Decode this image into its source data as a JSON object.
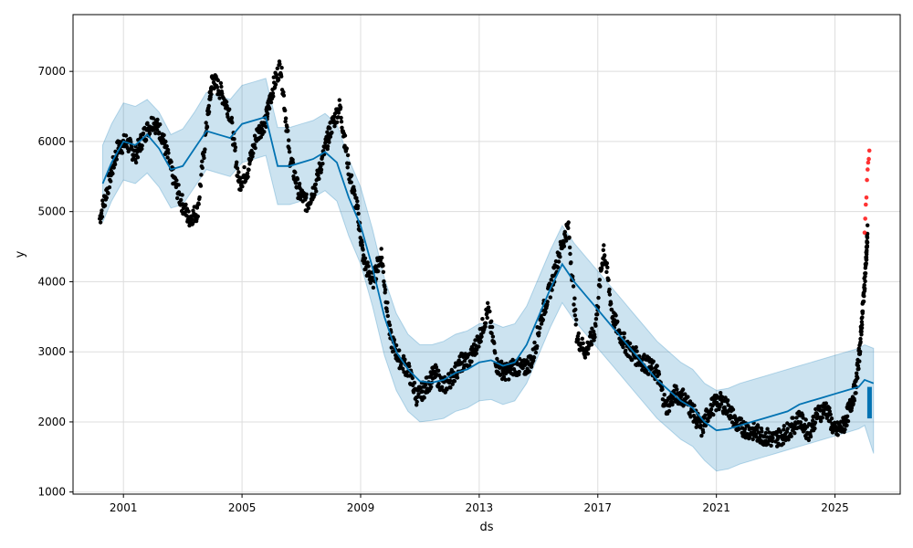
{
  "chart_data": {
    "type": "line",
    "xlabel": "ds",
    "ylabel": "y",
    "xlim": [
      1999.3,
      2027.2
    ],
    "ylim": [
      970,
      7810
    ],
    "grid": true,
    "x_ticks": [
      {
        "value": 2001,
        "label": "2001"
      },
      {
        "value": 2005,
        "label": "2005"
      },
      {
        "value": 2009,
        "label": "2009"
      },
      {
        "value": 2013,
        "label": "2013"
      },
      {
        "value": 2017,
        "label": "2017"
      },
      {
        "value": 2021,
        "label": "2021"
      },
      {
        "value": 2025,
        "label": "2025"
      }
    ],
    "y_ticks": [
      {
        "value": 1000,
        "label": "1000"
      },
      {
        "value": 2000,
        "label": "2000"
      },
      {
        "value": 3000,
        "label": "3000"
      },
      {
        "value": 4000,
        "label": "4000"
      },
      {
        "value": 5000,
        "label": "5000"
      },
      {
        "value": 6000,
        "label": "6000"
      },
      {
        "value": 7000,
        "label": "7000"
      }
    ],
    "colors": {
      "forecast": "#0072B2",
      "interval": "#0072B2",
      "observed": "#000000",
      "anomaly": "#ff0000",
      "grid": "#dddddd"
    },
    "series": [
      {
        "role": "forecast",
        "x": [
          2000.3,
          2000.6,
          2001.0,
          2001.4,
          2001.8,
          2002.2,
          2002.6,
          2003.0,
          2003.4,
          2003.8,
          2004.2,
          2004.6,
          2005.0,
          2005.4,
          2005.8,
          2006.2,
          2006.6,
          2007.0,
          2007.4,
          2007.8,
          2008.2,
          2008.6,
          2009.0,
          2009.4,
          2009.8,
          2010.2,
          2010.6,
          2011.0,
          2011.4,
          2011.8,
          2012.2,
          2012.6,
          2013.0,
          2013.4,
          2013.8,
          2014.2,
          2014.6,
          2015.0,
          2015.4,
          2015.8,
          2016.2,
          2016.6,
          2017.0,
          2017.4,
          2017.8,
          2018.2,
          2018.6,
          2019.0,
          2019.4,
          2019.8,
          2020.2,
          2020.6,
          2021.0,
          2021.4,
          2021.8,
          2022.2,
          2022.6,
          2023.0,
          2023.4,
          2023.8,
          2024.2,
          2024.6,
          2025.0,
          2025.4,
          2025.8,
          2026.0,
          2026.3
        ],
        "y": [
          5400,
          5700,
          6000,
          5950,
          6100,
          5900,
          5600,
          5650,
          5900,
          6150,
          6100,
          6050,
          6250,
          6300,
          6350,
          5650,
          5650,
          5700,
          5750,
          5850,
          5700,
          5200,
          4800,
          4200,
          3500,
          3000,
          2750,
          2580,
          2560,
          2600,
          2700,
          2750,
          2850,
          2880,
          2800,
          2850,
          3100,
          3500,
          3900,
          4250,
          4000,
          3800,
          3600,
          3400,
          3200,
          3000,
          2800,
          2600,
          2450,
          2300,
          2200,
          2000,
          1880,
          1900,
          1950,
          2000,
          2050,
          2100,
          2150,
          2250,
          2300,
          2350,
          2400,
          2450,
          2500,
          2600,
          2550
        ]
      },
      {
        "role": "interval-upper",
        "x": [
          2000.3,
          2000.6,
          2001.0,
          2001.4,
          2001.8,
          2002.2,
          2002.6,
          2003.0,
          2003.4,
          2003.8,
          2004.2,
          2004.6,
          2005.0,
          2005.4,
          2005.8,
          2006.2,
          2006.6,
          2007.0,
          2007.4,
          2007.8,
          2008.2,
          2008.6,
          2009.0,
          2009.4,
          2009.8,
          2010.2,
          2010.6,
          2011.0,
          2011.4,
          2011.8,
          2012.2,
          2012.6,
          2013.0,
          2013.4,
          2013.8,
          2014.2,
          2014.6,
          2015.0,
          2015.4,
          2015.8,
          2016.2,
          2016.6,
          2017.0,
          2017.4,
          2017.8,
          2018.2,
          2018.6,
          2019.0,
          2019.4,
          2019.8,
          2020.2,
          2020.6,
          2021.0,
          2021.4,
          2021.8,
          2022.2,
          2022.6,
          2023.0,
          2023.4,
          2023.8,
          2024.2,
          2024.6,
          2025.0,
          2025.4,
          2025.8,
          2026.0,
          2026.3
        ],
        "y": [
          5950,
          6250,
          6550,
          6500,
          6600,
          6420,
          6100,
          6180,
          6420,
          6700,
          6650,
          6600,
          6800,
          6850,
          6900,
          6200,
          6200,
          6250,
          6300,
          6400,
          6250,
          5750,
          5350,
          4750,
          4050,
          3550,
          3250,
          3100,
          3100,
          3150,
          3250,
          3300,
          3400,
          3420,
          3350,
          3400,
          3650,
          4050,
          4450,
          4800,
          4550,
          4350,
          4150,
          3950,
          3750,
          3550,
          3350,
          3150,
          3000,
          2850,
          2750,
          2550,
          2450,
          2480,
          2550,
          2600,
          2650,
          2700,
          2750,
          2800,
          2850,
          2900,
          2950,
          3000,
          3050,
          3100,
          3050
        ]
      },
      {
        "role": "interval-lower",
        "x": [
          2000.3,
          2000.6,
          2001.0,
          2001.4,
          2001.8,
          2002.2,
          2002.6,
          2003.0,
          2003.4,
          2003.8,
          2004.2,
          2004.6,
          2005.0,
          2005.4,
          2005.8,
          2006.2,
          2006.6,
          2007.0,
          2007.4,
          2007.8,
          2008.2,
          2008.6,
          2009.0,
          2009.4,
          2009.8,
          2010.2,
          2010.6,
          2011.0,
          2011.4,
          2011.8,
          2012.2,
          2012.6,
          2013.0,
          2013.4,
          2013.8,
          2014.2,
          2014.6,
          2015.0,
          2015.4,
          2015.8,
          2016.2,
          2016.6,
          2017.0,
          2017.4,
          2017.8,
          2018.2,
          2018.6,
          2019.0,
          2019.4,
          2019.8,
          2020.2,
          2020.6,
          2021.0,
          2021.4,
          2021.8,
          2022.2,
          2022.6,
          2023.0,
          2023.4,
          2023.8,
          2024.2,
          2024.6,
          2025.0,
          2025.4,
          2025.8,
          2026.0,
          2026.3
        ],
        "y": [
          4850,
          5150,
          5450,
          5400,
          5550,
          5350,
          5050,
          5100,
          5350,
          5600,
          5550,
          5500,
          5700,
          5750,
          5800,
          5100,
          5100,
          5150,
          5200,
          5300,
          5150,
          4650,
          4250,
          3650,
          2950,
          2450,
          2150,
          2000,
          2020,
          2050,
          2150,
          2200,
          2300,
          2320,
          2250,
          2300,
          2550,
          2950,
          3350,
          3700,
          3450,
          3250,
          3050,
          2850,
          2650,
          2450,
          2250,
          2050,
          1900,
          1750,
          1650,
          1450,
          1300,
          1330,
          1400,
          1450,
          1500,
          1550,
          1600,
          1650,
          1700,
          1750,
          1800,
          1850,
          1900,
          1950,
          1550
        ]
      },
      {
        "role": "observed",
        "x": [
          2000.2,
          2000.5,
          2000.8,
          2001.1,
          2001.4,
          2001.7,
          2002.0,
          2002.3,
          2002.6,
          2002.9,
          2003.2,
          2003.5,
          2003.8,
          2004.0,
          2004.3,
          2004.6,
          2004.9,
          2005.2,
          2005.5,
          2005.8,
          2006.0,
          2006.3,
          2006.6,
          2006.9,
          2007.2,
          2007.5,
          2007.8,
          2008.0,
          2008.3,
          2008.6,
          2008.9,
          2009.1,
          2009.4,
          2009.7,
          2010.0,
          2010.3,
          2010.6,
          2010.9,
          2011.2,
          2011.5,
          2011.8,
          2012.1,
          2012.4,
          2012.7,
          2013.0,
          2013.3,
          2013.6,
          2013.9,
          2014.2,
          2014.5,
          2014.8,
          2015.1,
          2015.4,
          2015.7,
          2016.0,
          2016.3,
          2016.6,
          2016.9,
          2017.2,
          2017.5,
          2017.8,
          2018.1,
          2018.4,
          2018.7,
          2019.0,
          2019.3,
          2019.6,
          2019.9,
          2020.2,
          2020.5,
          2020.8,
          2021.1,
          2021.4,
          2021.7,
          2022.0,
          2022.3,
          2022.6,
          2022.9,
          2023.2,
          2023.5,
          2023.8,
          2024.1,
          2024.4,
          2024.7,
          2025.0,
          2025.3,
          2025.5,
          2025.7,
          2025.85,
          2025.95,
          2026.05,
          2026.1
        ],
        "y": [
          4900,
          5400,
          5900,
          6000,
          5800,
          6100,
          6300,
          6100,
          5600,
          5200,
          4900,
          5000,
          6200,
          6900,
          6700,
          6400,
          5400,
          5600,
          6100,
          6300,
          6700,
          7100,
          5800,
          5300,
          5100,
          5400,
          5900,
          6200,
          6500,
          5600,
          5000,
          4300,
          4000,
          4400,
          3200,
          2900,
          2750,
          2350,
          2500,
          2700,
          2500,
          2650,
          2850,
          2900,
          3200,
          3600,
          2800,
          2700,
          2800,
          2750,
          2900,
          3500,
          3900,
          4400,
          4800,
          3200,
          3000,
          3300,
          4500,
          3500,
          3200,
          3000,
          2900,
          2800,
          2700,
          2200,
          2400,
          2350,
          2150,
          1900,
          2200,
          2300,
          2200,
          1950,
          1900,
          1850,
          1800,
          1750,
          1800,
          1900,
          2050,
          1850,
          2100,
          2200,
          1850,
          1950,
          2200,
          2500,
          3100,
          3700,
          4300,
          4700
        ]
      },
      {
        "role": "anomalies",
        "x": [
          2026.0,
          2026.02,
          2026.04,
          2026.06,
          2026.08,
          2026.1,
          2026.12,
          2026.14,
          2026.16
        ],
        "y": [
          4700,
          4900,
          5100,
          5200,
          5450,
          5600,
          5700,
          5750,
          5870
        ]
      },
      {
        "role": "forecast-future",
        "x": [
          2026.15,
          2026.2,
          2026.25,
          2026.3,
          2026.35
        ],
        "y": [
          2050,
          2150,
          2350,
          2450,
          2500
        ]
      }
    ]
  }
}
